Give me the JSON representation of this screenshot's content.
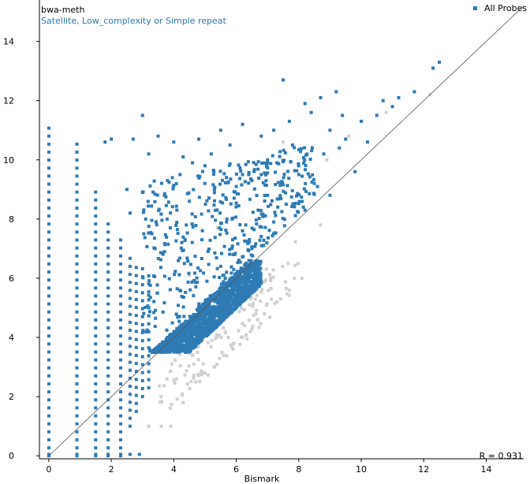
{
  "chart_data": {
    "type": "scatter",
    "ylabel": "bwa-meth",
    "subtitle": "Satellite, Low_complexity or Simple repeat",
    "xlabel": "Bismark",
    "xlim": [
      -0.3,
      15.2
    ],
    "ylim": [
      -0.1,
      15.4
    ],
    "x_ticks": [
      "0",
      "2",
      "4",
      "6",
      "8",
      "10",
      "12",
      "14"
    ],
    "y_ticks": [
      "0",
      "2",
      "4",
      "6",
      "8",
      "10",
      "12",
      "14"
    ],
    "grid": false,
    "legend": {
      "label": "All Probes",
      "position": "top-right"
    },
    "correlation_label": "R = 0.931",
    "diagonal": true,
    "colors": {
      "highlight": "#2e7bb4",
      "background": "#d0d0d0",
      "axis": "#000000"
    },
    "series": [
      {
        "name": "All Probes",
        "points": [
          [
            7.5,
            12.7
          ],
          [
            9.2,
            12.3
          ],
          [
            10.7,
            12.0
          ],
          [
            11.2,
            12.1
          ],
          [
            11.7,
            12.3
          ],
          [
            12.3,
            13.1
          ],
          [
            12.5,
            13.3
          ],
          [
            9.4,
            11.5
          ],
          [
            10.0,
            11.3
          ],
          [
            10.5,
            11.5
          ],
          [
            11.0,
            11.8
          ],
          [
            8.2,
            11.9
          ],
          [
            8.7,
            12.1
          ],
          [
            7.7,
            11.3
          ],
          [
            8.4,
            11.6
          ],
          [
            9.0,
            11.0
          ],
          [
            9.5,
            10.7
          ],
          [
            10.2,
            10.6
          ],
          [
            8.8,
            10.2
          ],
          [
            9.3,
            10.4
          ],
          [
            9.8,
            9.6
          ],
          [
            8.5,
            9.2
          ],
          [
            9.0,
            8.8
          ],
          [
            8.0,
            9.5
          ],
          [
            7.8,
            10.5
          ],
          [
            7.2,
            11.0
          ],
          [
            6.8,
            10.8
          ],
          [
            6.2,
            11.2
          ],
          [
            5.5,
            11.0
          ],
          [
            4.8,
            10.7
          ],
          [
            4.0,
            10.6
          ],
          [
            3.5,
            10.8
          ],
          [
            3.2,
            10.2
          ],
          [
            2.7,
            10.7
          ],
          [
            3.0,
            11.5
          ],
          [
            1.8,
            10.6
          ],
          [
            2.0,
            10.7
          ],
          [
            3.0,
            8.9
          ],
          [
            3.1,
            8.0
          ],
          [
            2.5,
            9.0
          ],
          [
            2.6,
            8.2
          ],
          [
            3.3,
            7.5
          ],
          [
            3.4,
            7.0
          ],
          [
            3.8,
            9.3
          ],
          [
            4.2,
            9.5
          ],
          [
            4.5,
            8.6
          ],
          [
            5.0,
            9.8
          ],
          [
            5.3,
            9.0
          ],
          [
            5.7,
            8.0
          ],
          [
            6.0,
            9.1
          ],
          [
            6.4,
            9.5
          ],
          [
            6.7,
            8.3
          ],
          [
            7.0,
            8.8
          ],
          [
            7.3,
            9.9
          ],
          [
            6.2,
            7.6
          ],
          [
            6.5,
            7.0
          ],
          [
            5.9,
            6.8
          ],
          [
            5.5,
            6.4
          ],
          [
            4.9,
            7.3
          ],
          [
            4.4,
            7.8
          ],
          [
            4.1,
            8.3
          ],
          [
            3.7,
            6.9
          ],
          [
            7.2,
            7.9
          ],
          [
            7.6,
            8.5
          ],
          [
            8.2,
            8.3
          ],
          [
            8.6,
            9.1
          ],
          [
            5.2,
            10.2
          ],
          [
            4.6,
            9.9
          ],
          [
            6.8,
            9.5
          ],
          [
            7.0,
            10.0
          ],
          [
            5.8,
            10.5
          ],
          [
            4.3,
            10.1
          ]
        ],
        "vertical_columns": [
          {
            "x": 0.0,
            "y_range": [
              0.0,
              11.1
            ]
          },
          {
            "x": 0.9,
            "y_range": [
              0.0,
              10.7
            ]
          },
          {
            "x": 1.5,
            "y_range": [
              0.0,
              9.0
            ]
          },
          {
            "x": 1.9,
            "y_range": [
              0.0,
              8.0
            ]
          },
          {
            "x": 2.3,
            "y_range": [
              0.0,
              7.5
            ]
          },
          {
            "x": 2.6,
            "y_range": [
              1.0,
              6.8
            ]
          },
          {
            "x": 2.8,
            "y_range": [
              1.5,
              6.6
            ]
          },
          {
            "x": 3.0,
            "y_range": [
              2.0,
              6.4
            ]
          },
          {
            "x": 3.2,
            "y_range": [
              2.3,
              6.2
            ]
          }
        ],
        "dense_region": {
          "x_range": [
            3.2,
            6.8
          ],
          "y_range": [
            3.5,
            6.6
          ]
        }
      },
      {
        "name": "",
        "points": [
          [
            3.2,
            1.0
          ],
          [
            3.6,
            1.0
          ],
          [
            3.9,
            1.0
          ],
          [
            4.3,
            1.8
          ],
          [
            4.7,
            2.5
          ],
          [
            5.0,
            2.8
          ],
          [
            5.3,
            3.0
          ],
          [
            5.6,
            3.4
          ],
          [
            5.9,
            3.6
          ],
          [
            6.2,
            4.0
          ],
          [
            6.5,
            4.3
          ],
          [
            6.9,
            4.8
          ],
          [
            7.3,
            5.2
          ],
          [
            7.7,
            5.6
          ],
          [
            8.1,
            6.0
          ],
          [
            8.7,
            7.8
          ],
          [
            10.8,
            11.6
          ],
          [
            12.2,
            12.2
          ],
          [
            9.6,
            10.8
          ],
          [
            8.9,
            10.0
          ],
          [
            7.5,
            10.6
          ],
          [
            5.4,
            7.7
          ],
          [
            4.5,
            6.1
          ]
        ]
      }
    ]
  }
}
